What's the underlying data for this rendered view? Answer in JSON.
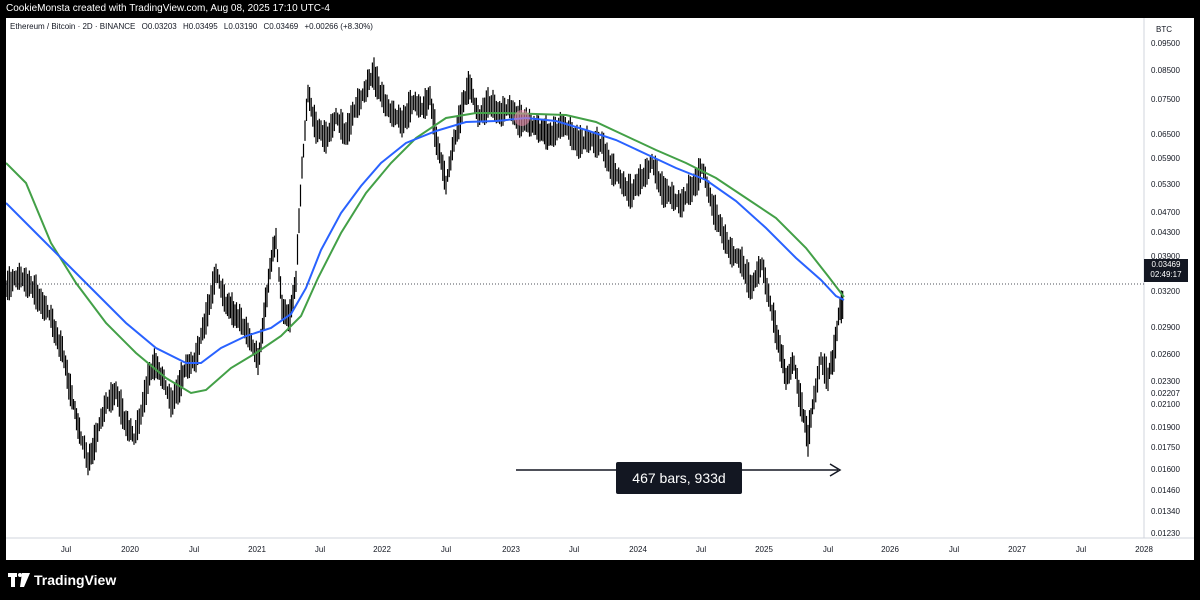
{
  "header": {
    "text": "CookieMonsta created with TradingView.com, Aug 08, 2025 17:10 UTC-4"
  },
  "legend": {
    "symbol": "Ethereum / Bitcoin · 2D · BINANCE",
    "open": "O0.03203",
    "high": "H0.03495",
    "low": "L0.03190",
    "close": "C0.03469",
    "change": "+0.00266 (+8.30%)"
  },
  "price_axis": {
    "currency": "BTC",
    "labels": [
      "0.09500",
      "0.08500",
      "0.07500",
      "0.06500",
      "0.05900",
      "0.05300",
      "0.04700",
      "0.04300",
      "0.03900",
      "0.03200",
      "0.02900",
      "0.02600",
      "0.02300",
      "0.02207",
      "0.02100",
      "0.01900",
      "0.01750",
      "0.01600",
      "0.01460",
      "0.01340",
      "0.01230"
    ],
    "current_price": "0.03469",
    "countdown": "02:49:17"
  },
  "time_axis": {
    "labels": [
      "Jul",
      "2020",
      "Jul",
      "2021",
      "Jul",
      "2022",
      "Jul",
      "2023",
      "Jul",
      "2024",
      "Jul",
      "2025",
      "Jul",
      "2026",
      "Jul",
      "2027",
      "Jul",
      "2028"
    ]
  },
  "measure": {
    "label": "467 bars, 933d"
  },
  "footer": {
    "brand": "TradingView"
  },
  "colors": {
    "ma_fast": "#2962ff",
    "ma_slow": "#43a047",
    "candles": "#000000",
    "highlight": "#f48fb1"
  }
}
